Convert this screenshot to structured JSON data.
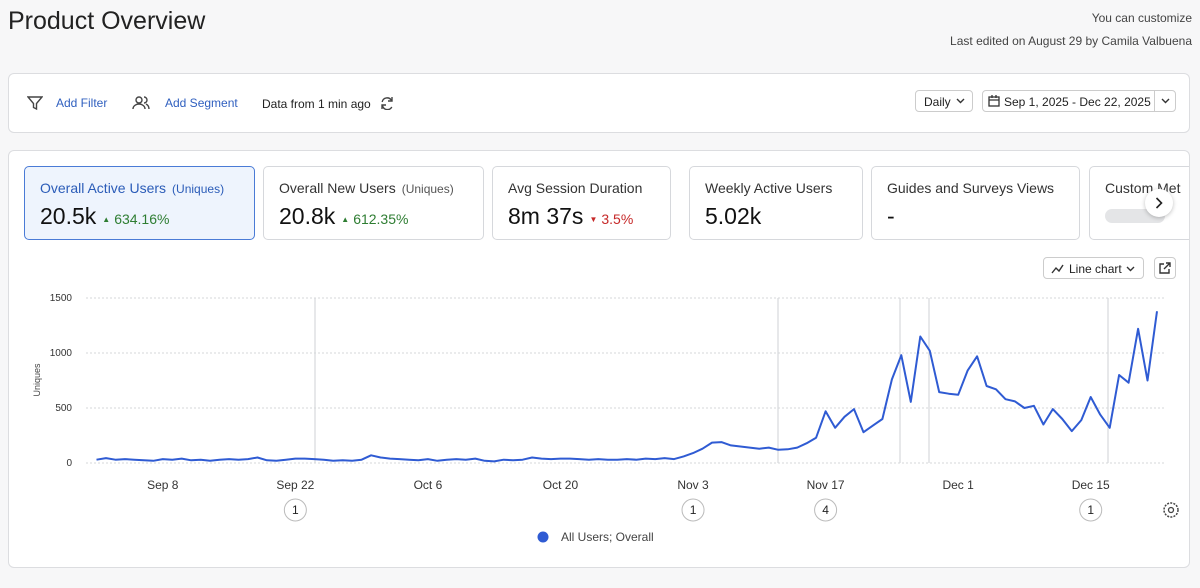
{
  "header": {
    "title": "Product Overview",
    "customize": "You can customize",
    "last_edited": "Last edited on August 29 by Camila Valbuena"
  },
  "toolbar": {
    "add_filter": "Add Filter",
    "add_segment": "Add Segment",
    "data_freshness": "Data from 1 min ago",
    "interval": "Daily",
    "date_range": "Sep 1, 2025 - Dec 22, 2025"
  },
  "cards": [
    {
      "title": "Overall Active Users",
      "qualifier": "(Uniques)",
      "value": "20.5k",
      "change": "634.16%",
      "direction": "up"
    },
    {
      "title": "Overall New Users",
      "qualifier": "(Uniques)",
      "value": "20.8k",
      "change": "612.35%",
      "direction": "up"
    },
    {
      "title": "Avg Session Duration",
      "value": "8m 37s",
      "change": "3.5%",
      "direction": "down"
    },
    {
      "title": "Weekly Active Users",
      "value": "5.02k"
    },
    {
      "title": "Guides and Surveys Views",
      "value": "-"
    },
    {
      "title": "Custom Met"
    }
  ],
  "chart_view": "Line chart",
  "chart_data": {
    "type": "line",
    "ylabel": "Uniques",
    "categories": [
      null,
      null,
      null,
      null,
      null,
      null,
      null,
      "Sep 8",
      null,
      null,
      null,
      null,
      null,
      null,
      null,
      null,
      null,
      null,
      null,
      null,
      null,
      "Sep 22",
      null,
      null,
      null,
      null,
      null,
      null,
      null,
      null,
      null,
      null,
      null,
      null,
      null,
      "Oct 6",
      null,
      null,
      null,
      null,
      null,
      null,
      null,
      null,
      null,
      null,
      null,
      null,
      null,
      "Oct 20",
      null,
      null,
      null,
      null,
      null,
      null,
      null,
      null,
      null,
      null,
      null,
      null,
      null,
      "Nov 3",
      null,
      null,
      null,
      null,
      null,
      null,
      null,
      null,
      null,
      null,
      null,
      null,
      null,
      "Nov 17",
      null,
      null,
      null,
      null,
      null,
      null,
      null,
      null,
      null,
      null,
      null,
      null,
      null,
      "Dec 1",
      null,
      null,
      null,
      null,
      null,
      null,
      null,
      null,
      null,
      null,
      null,
      null,
      null,
      "Dec 15",
      null,
      null,
      null,
      null,
      null,
      null,
      null
    ],
    "series": [
      {
        "name": "All Users; Overall",
        "color": "#2f5bd3",
        "values": [
          30,
          45,
          30,
          35,
          30,
          25,
          20,
          35,
          30,
          40,
          25,
          30,
          20,
          30,
          35,
          30,
          35,
          50,
          25,
          20,
          30,
          40,
          40,
          35,
          30,
          20,
          25,
          20,
          30,
          70,
          50,
          40,
          35,
          30,
          25,
          35,
          20,
          30,
          35,
          30,
          40,
          20,
          15,
          30,
          25,
          30,
          50,
          40,
          35,
          40,
          40,
          35,
          30,
          35,
          30,
          30,
          35,
          30,
          40,
          35,
          45,
          35,
          60,
          90,
          130,
          185,
          190,
          160,
          150,
          140,
          130,
          140,
          120,
          125,
          140,
          180,
          230,
          470,
          320,
          420,
          490,
          280,
          340,
          400,
          760,
          980,
          555,
          1150,
          1020,
          645,
          630,
          620,
          840,
          970,
          700,
          670,
          580,
          560,
          500,
          520,
          350,
          490,
          400,
          290,
          390,
          600,
          440,
          320,
          800,
          730,
          1220,
          750,
          1380
        ]
      }
    ],
    "ylim": [
      0,
      1500
    ],
    "yticks": [
      0,
      500,
      1000,
      1500
    ],
    "grid": true,
    "annotations": [
      {
        "at": "Sep 22",
        "count": 1
      },
      {
        "at": "Nov 3",
        "count": 1
      },
      {
        "at": "Nov 17",
        "count": 4
      },
      {
        "at": "Dec 15",
        "count": 1
      }
    ]
  }
}
